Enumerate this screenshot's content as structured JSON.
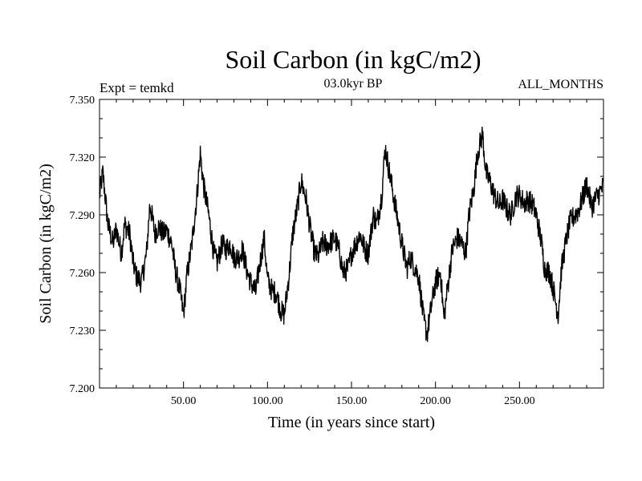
{
  "chart_data": {
    "type": "line",
    "title": "Soil Carbon (in kgC/m2)",
    "subtitle": "03.0kyr BP",
    "annotation_left": "Expt = temkd",
    "annotation_right": "ALL_MONTHS",
    "xlabel": "Time (in years since start)",
    "ylabel": "Soil Carbon (in kgC/m2)",
    "xlim": [
      0,
      300
    ],
    "ylim": [
      7.2,
      7.35
    ],
    "x_ticks": [
      50,
      100,
      150,
      200,
      250
    ],
    "x_tick_labels": [
      "50.00",
      "100.00",
      "150.00",
      "200.00",
      "250.00"
    ],
    "y_ticks": [
      7.2,
      7.23,
      7.26,
      7.29,
      7.32,
      7.35
    ],
    "y_tick_labels": [
      "7.200",
      "7.230",
      "7.260",
      "7.290",
      "7.320",
      "7.350"
    ],
    "noise_amplitude": 0.006,
    "series": [
      {
        "name": "Soil Carbon",
        "color": "#000000",
        "x": [
          0,
          2,
          5,
          8,
          10,
          13,
          15,
          18,
          20,
          22,
          25,
          28,
          30,
          33,
          35,
          38,
          40,
          43,
          45,
          48,
          50,
          52,
          55,
          58,
          60,
          62,
          65,
          68,
          70,
          73,
          75,
          78,
          80,
          83,
          85,
          88,
          90,
          93,
          95,
          98,
          100,
          103,
          105,
          108,
          110,
          113,
          115,
          118,
          120,
          123,
          125,
          128,
          130,
          133,
          135,
          138,
          140,
          143,
          145,
          148,
          150,
          153,
          155,
          158,
          160,
          163,
          165,
          168,
          170,
          173,
          175,
          178,
          180,
          183,
          185,
          188,
          190,
          193,
          195,
          198,
          200,
          203,
          205,
          208,
          210,
          213,
          215,
          218,
          220,
          223,
          225,
          228,
          230,
          233,
          235,
          238,
          240,
          243,
          245,
          248,
          250,
          253,
          255,
          258,
          260,
          263,
          265,
          268,
          270,
          273,
          275,
          278,
          280,
          283,
          285,
          288,
          290,
          293,
          295,
          298,
          300
        ],
        "y": [
          7.3,
          7.312,
          7.285,
          7.275,
          7.283,
          7.27,
          7.285,
          7.28,
          7.265,
          7.258,
          7.255,
          7.27,
          7.296,
          7.28,
          7.284,
          7.28,
          7.282,
          7.275,
          7.262,
          7.25,
          7.238,
          7.258,
          7.275,
          7.3,
          7.322,
          7.305,
          7.29,
          7.27,
          7.265,
          7.275,
          7.272,
          7.275,
          7.268,
          7.268,
          7.272,
          7.26,
          7.255,
          7.25,
          7.262,
          7.278,
          7.256,
          7.25,
          7.25,
          7.24,
          7.238,
          7.26,
          7.28,
          7.295,
          7.308,
          7.298,
          7.285,
          7.27,
          7.268,
          7.276,
          7.274,
          7.276,
          7.278,
          7.27,
          7.26,
          7.262,
          7.27,
          7.276,
          7.28,
          7.272,
          7.27,
          7.29,
          7.285,
          7.3,
          7.325,
          7.31,
          7.3,
          7.285,
          7.275,
          7.262,
          7.268,
          7.262,
          7.258,
          7.235,
          7.228,
          7.245,
          7.255,
          7.26,
          7.236,
          7.258,
          7.272,
          7.278,
          7.276,
          7.27,
          7.29,
          7.305,
          7.322,
          7.332,
          7.312,
          7.306,
          7.3,
          7.295,
          7.298,
          7.292,
          7.29,
          7.3,
          7.3,
          7.296,
          7.298,
          7.295,
          7.29,
          7.276,
          7.262,
          7.26,
          7.252,
          7.238,
          7.262,
          7.278,
          7.286,
          7.29,
          7.292,
          7.3,
          7.306,
          7.294,
          7.298,
          7.302,
          7.305
        ]
      }
    ]
  }
}
